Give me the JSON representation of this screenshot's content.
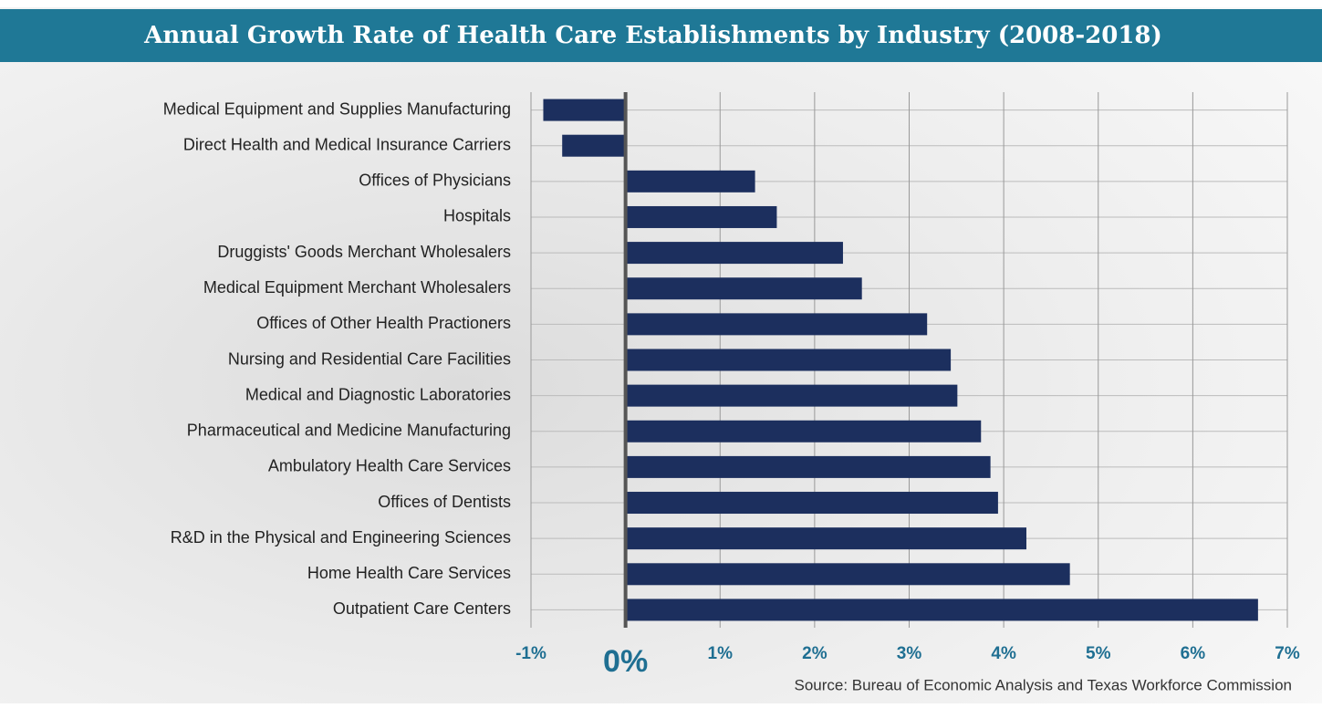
{
  "chart_data": {
    "type": "barh",
    "title": "Annual Growth Rate of Health Care Establishments by Industry (2008-2018)",
    "source": "Source: Bureau of Economic Analysis and Texas Workforce Commission",
    "categories": [
      "Medical Equipment and Supplies Manufacturing",
      "Direct Health and Medical Insurance Carriers",
      "Offices of Physicians",
      "Hospitals",
      "Druggists' Goods Merchant Wholesalers",
      "Medical Equipment Merchant Wholesalers",
      "Offices of Other Health Practioners",
      "Nursing and Residential Care Facilities",
      "Medical and Diagnostic Laboratories",
      "Pharmaceutical and Medicine Manufacturing",
      "Ambulatory Health Care Services",
      "Offices of Dentists",
      "R&D in the Physical and Engineering Sciences",
      "Home Health Care Services",
      "Outpatient Care Centers"
    ],
    "values": [
      -0.87,
      -0.67,
      1.37,
      1.6,
      2.3,
      2.5,
      3.19,
      3.44,
      3.51,
      3.76,
      3.86,
      3.94,
      4.24,
      4.7,
      6.69
    ],
    "color": "#1c2f5e",
    "xlim": [
      -1,
      7
    ],
    "xticks": [
      {
        "value": -1,
        "label": "-1%"
      },
      {
        "value": 0,
        "label": "0%"
      },
      {
        "value": 1,
        "label": "1%"
      },
      {
        "value": 2,
        "label": "2%"
      },
      {
        "value": 3,
        "label": "3%"
      },
      {
        "value": 4,
        "label": "4%"
      },
      {
        "value": 5,
        "label": "5%"
      },
      {
        "value": 6,
        "label": "6%"
      },
      {
        "value": 7,
        "label": "7%"
      }
    ],
    "grid": true
  }
}
